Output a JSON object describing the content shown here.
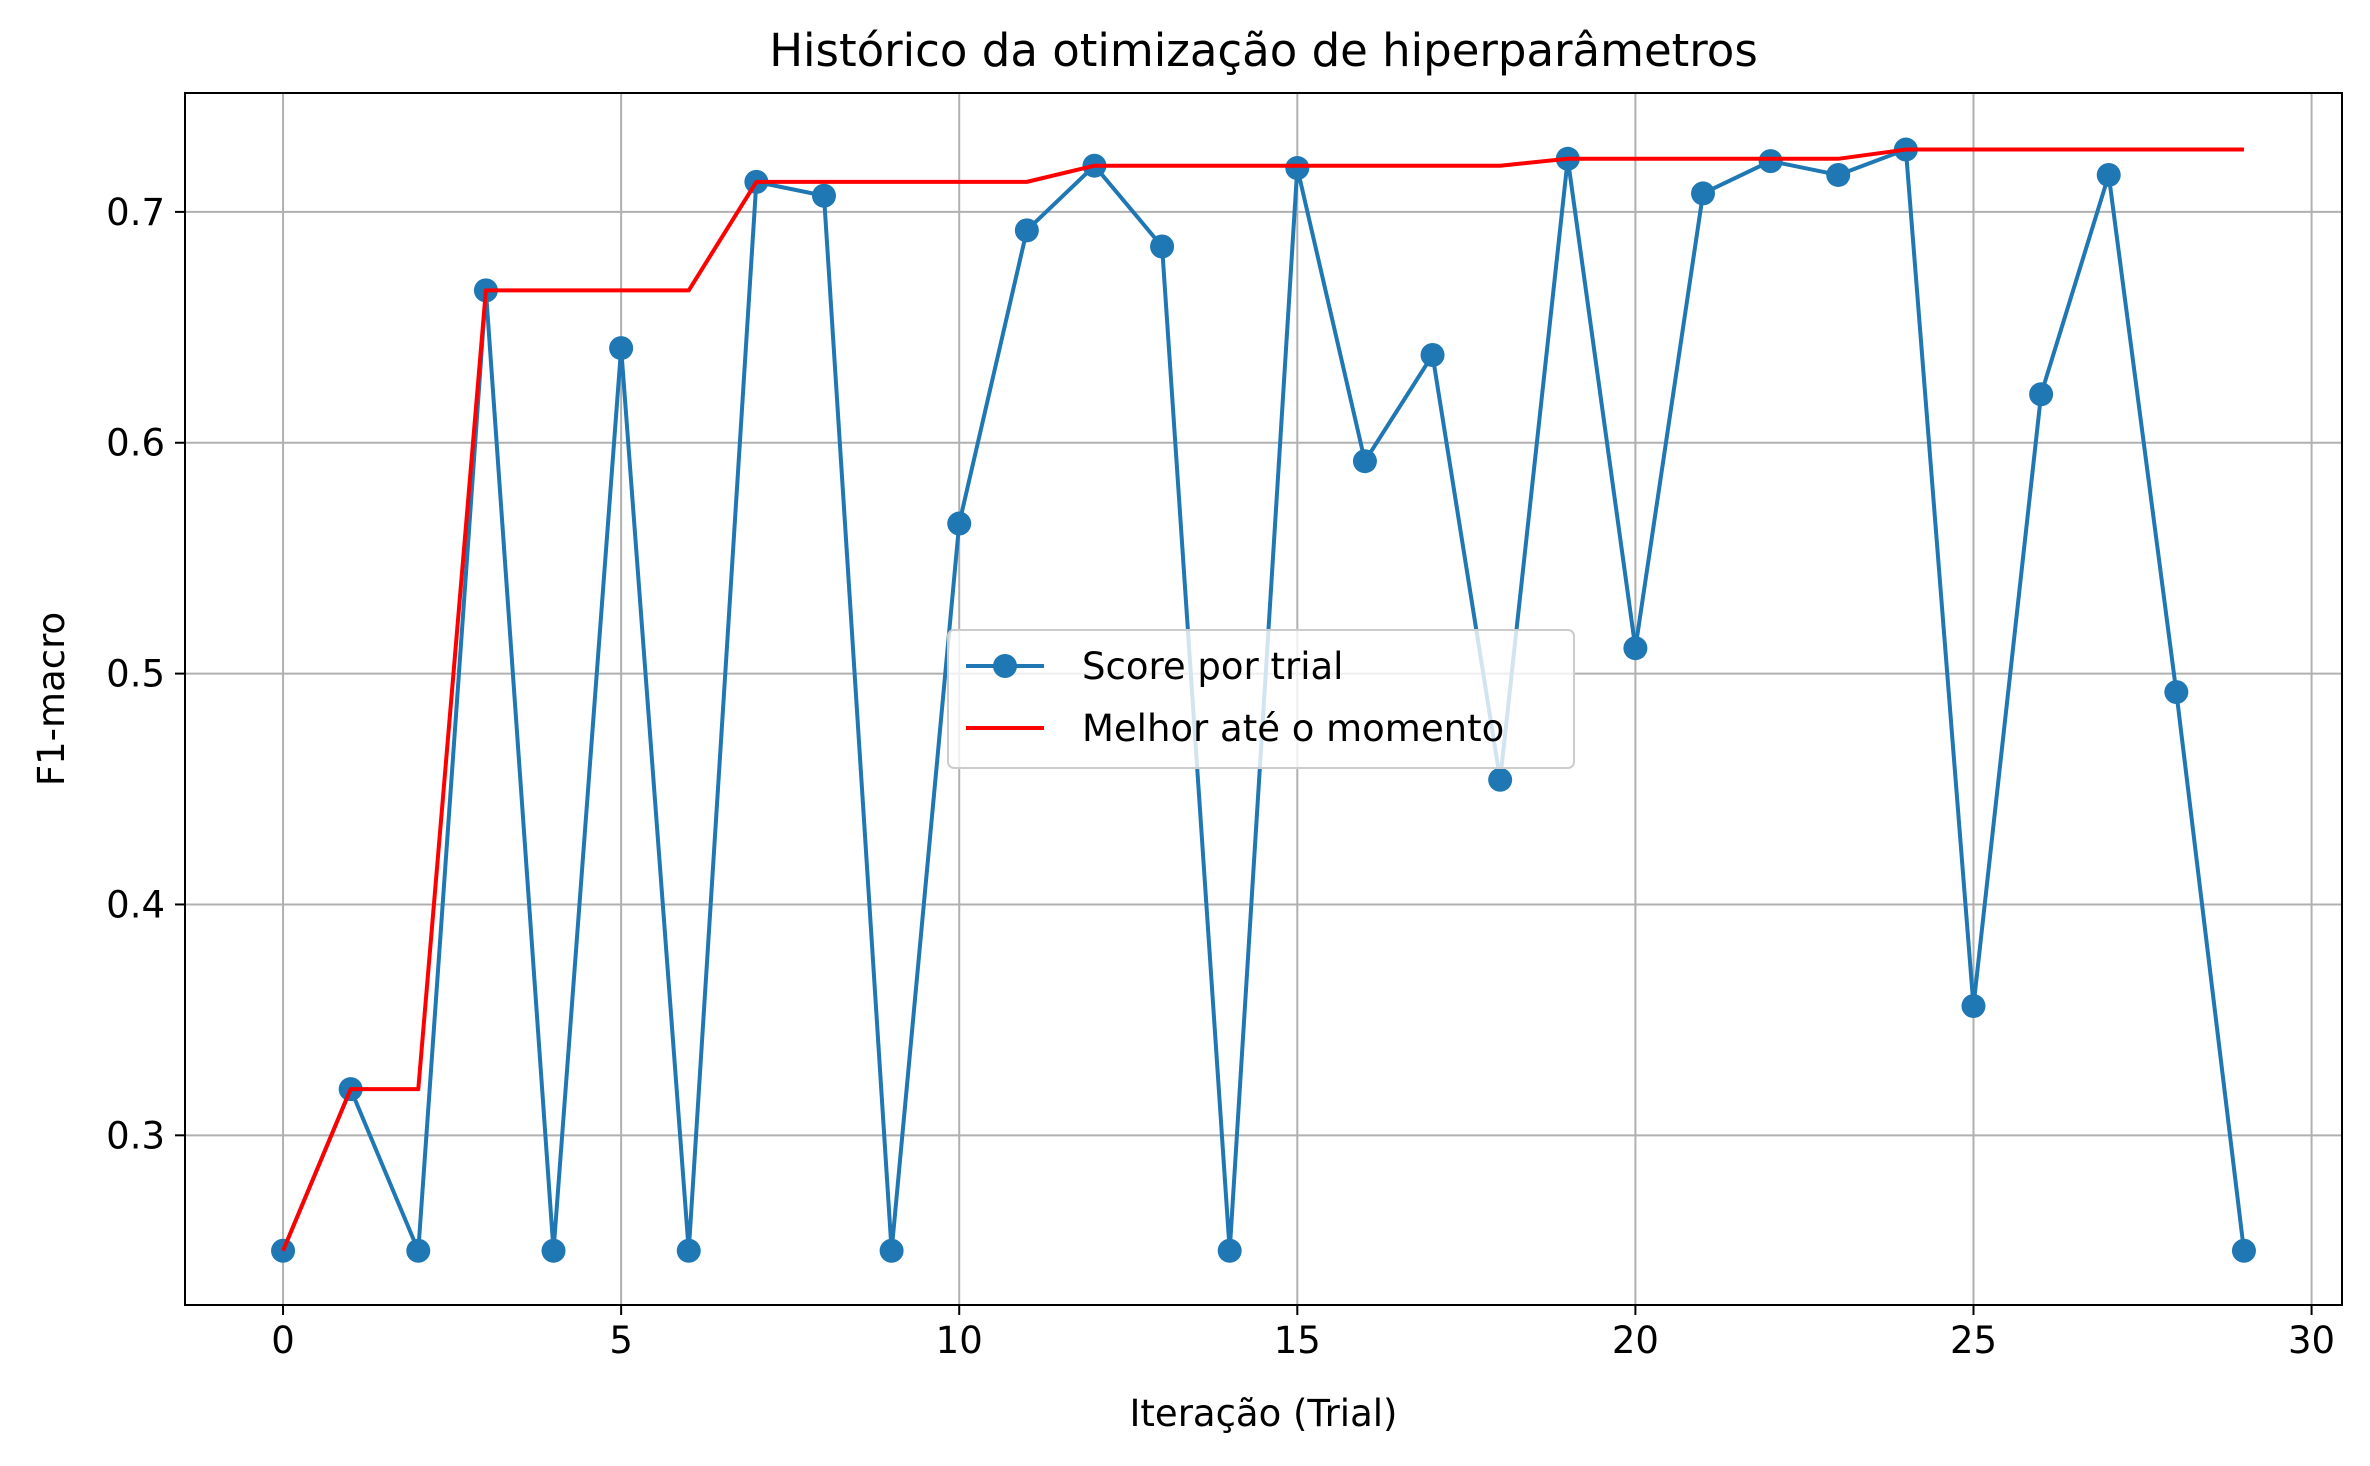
{
  "chart_data": {
    "type": "line",
    "title": "Histórico da otimização de hiperparâmetros",
    "xlabel": "Iteração (Trial)",
    "ylabel": "F1-macro",
    "xlim": [
      -1.45,
      30.45
    ],
    "ylim": [
      0.2265,
      0.7515
    ],
    "xticks": [
      0,
      5,
      10,
      15,
      20,
      25,
      30
    ],
    "xtick_labels": [
      "0",
      "5",
      "10",
      "15",
      "20",
      "25",
      "30"
    ],
    "yticks": [
      0.3,
      0.4,
      0.5,
      0.6,
      0.7
    ],
    "ytick_labels": [
      "0.3",
      "0.4",
      "0.5",
      "0.6",
      "0.7"
    ],
    "grid": true,
    "legend_position": "center",
    "series": [
      {
        "name": "Score por trial",
        "color": "#1f77b4",
        "marker": "circle",
        "x": [
          0,
          1,
          2,
          3,
          4,
          5,
          6,
          7,
          8,
          9,
          10,
          11,
          12,
          13,
          14,
          15,
          16,
          17,
          18,
          19,
          20,
          21,
          22,
          23,
          24,
          25,
          26,
          27,
          28,
          29
        ],
        "values": [
          0.25,
          0.32,
          0.25,
          0.666,
          0.25,
          0.641,
          0.25,
          0.713,
          0.707,
          0.25,
          0.565,
          0.692,
          0.72,
          0.685,
          0.25,
          0.719,
          0.592,
          0.638,
          0.454,
          0.723,
          0.511,
          0.708,
          0.722,
          0.716,
          0.727,
          0.356,
          0.621,
          0.716,
          0.492,
          0.25
        ]
      },
      {
        "name": "Melhor até o momento",
        "color": "#ff0000",
        "marker": "none",
        "x": [
          0,
          1,
          2,
          3,
          4,
          5,
          6,
          7,
          8,
          9,
          10,
          11,
          12,
          13,
          14,
          15,
          16,
          17,
          18,
          19,
          20,
          21,
          22,
          23,
          24,
          25,
          26,
          27,
          28,
          29
        ],
        "values": [
          0.25,
          0.32,
          0.32,
          0.666,
          0.666,
          0.666,
          0.666,
          0.713,
          0.713,
          0.713,
          0.713,
          0.713,
          0.72,
          0.72,
          0.72,
          0.72,
          0.72,
          0.72,
          0.72,
          0.723,
          0.723,
          0.723,
          0.723,
          0.723,
          0.727,
          0.727,
          0.727,
          0.727,
          0.727,
          0.727
        ]
      }
    ]
  }
}
